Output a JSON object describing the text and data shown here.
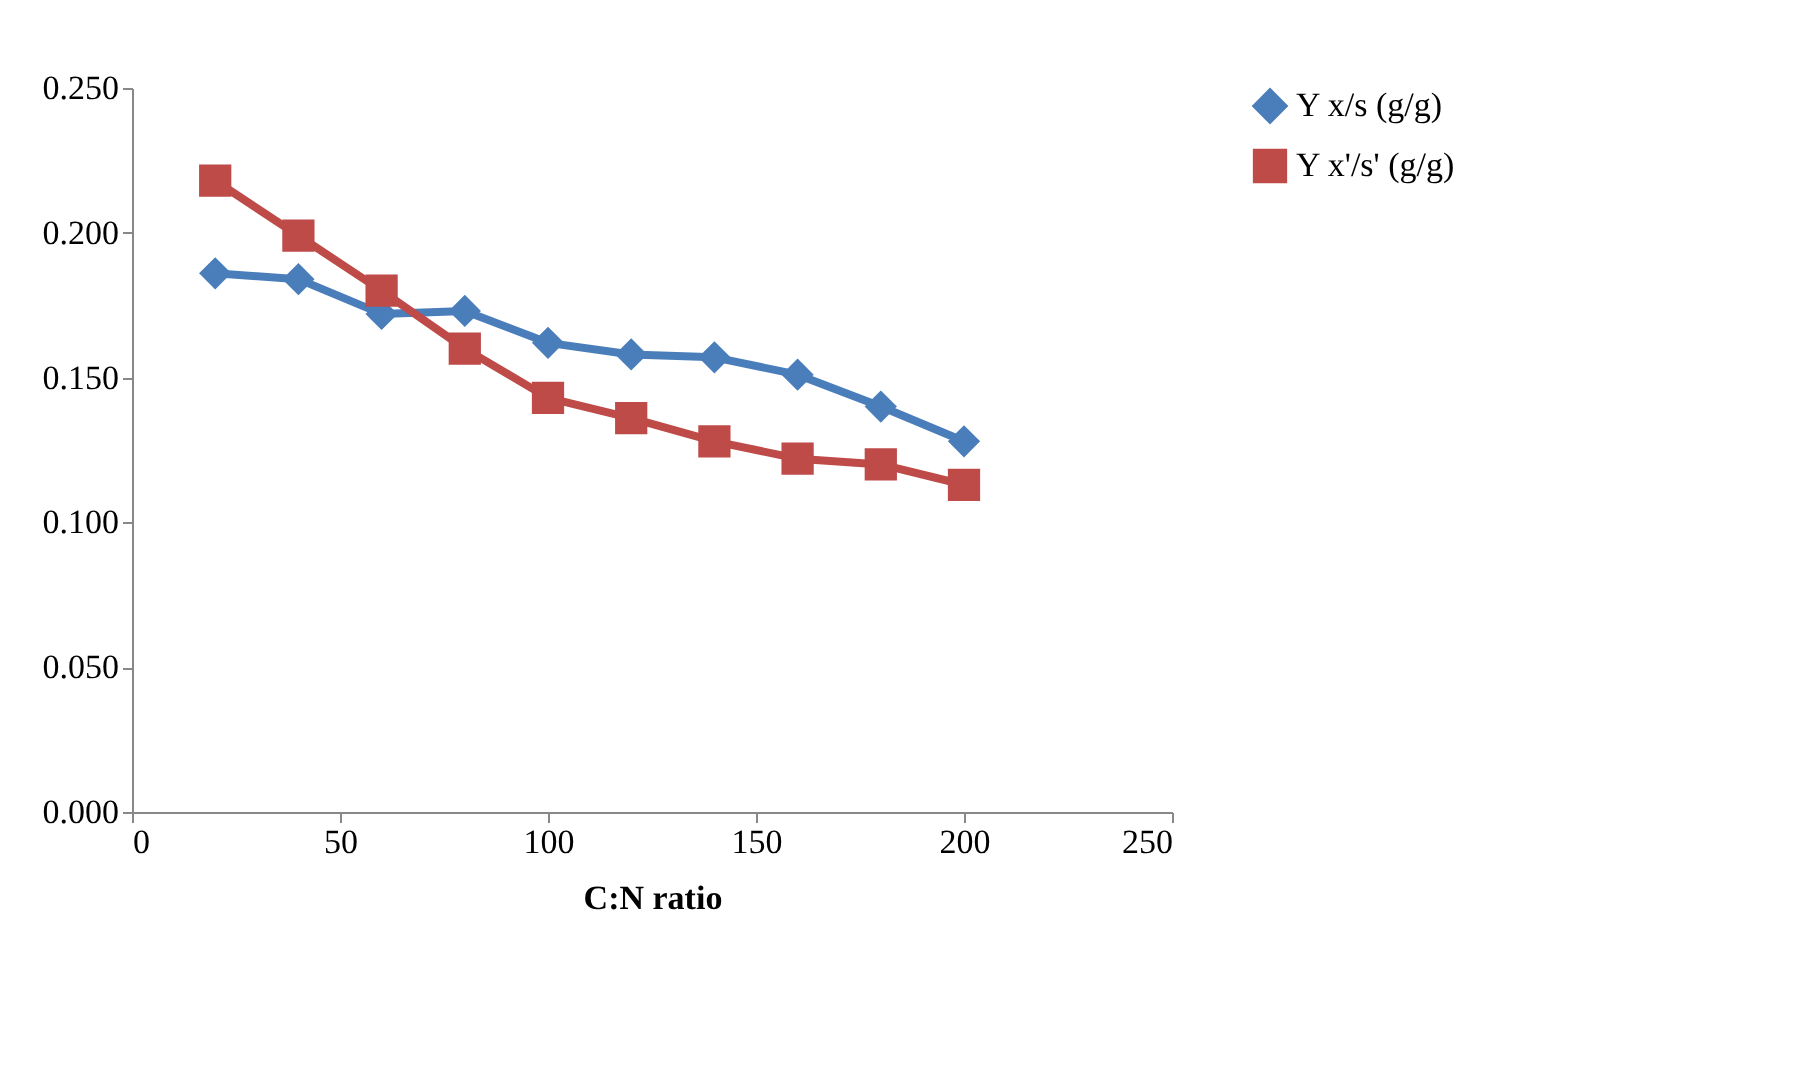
{
  "chart_data": {
    "type": "line",
    "xlabel": "C:N ratio",
    "x": [
      20,
      40,
      60,
      80,
      100,
      120,
      140,
      160,
      180,
      200
    ],
    "series": [
      {
        "name": "Y x/s (g/g)",
        "color": "#4a7ebb",
        "marker": "diamond",
        "values": [
          0.186,
          0.184,
          0.172,
          0.173,
          0.162,
          0.158,
          0.157,
          0.151,
          0.14,
          0.128
        ]
      },
      {
        "name": "Y x'/s' (g/g)",
        "color": "#be4b48",
        "marker": "square",
        "values": [
          0.218,
          0.199,
          0.18,
          0.16,
          0.143,
          0.136,
          0.128,
          0.122,
          0.12,
          0.113
        ]
      }
    ],
    "xlim": [
      0,
      250
    ],
    "xticks": [
      0,
      50,
      100,
      150,
      200,
      250
    ],
    "ylim": [
      0,
      0.25
    ],
    "yticks": [
      {
        "value": 0,
        "label": "0.000"
      },
      {
        "value": 0.05,
        "label": "0.050"
      },
      {
        "value": 0.1,
        "label": "0.100"
      },
      {
        "value": 0.15,
        "label": "0.150"
      },
      {
        "value": 0.2,
        "label": "0.200"
      },
      {
        "value": 0.25,
        "label": "0.250"
      }
    ],
    "grid": false,
    "legend": "right",
    "line_style": "solid"
  }
}
